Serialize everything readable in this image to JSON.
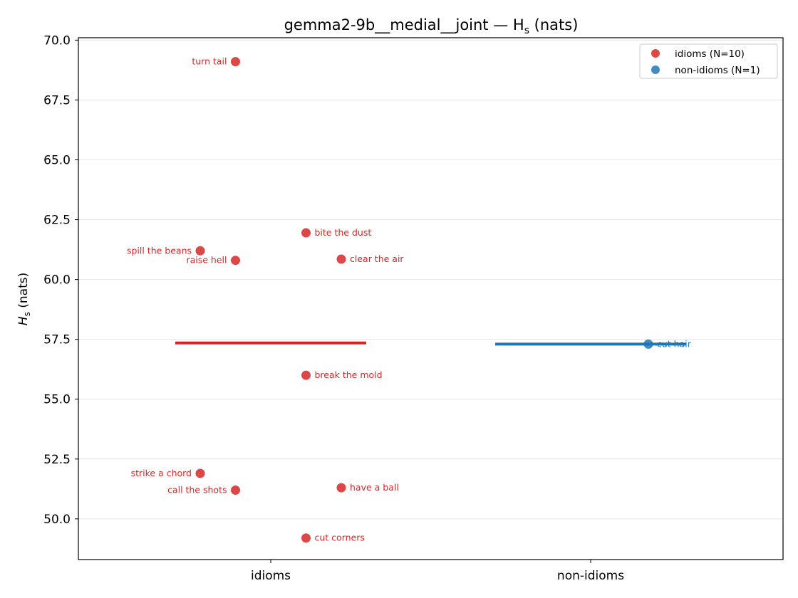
{
  "chart_data": {
    "type": "scatter",
    "title": "gemma2-9b__medial__joint — H",
    "title_sub": "s",
    "title_suffix": " (nats)",
    "ylabel_main": "H",
    "ylabel_sub": "s",
    "ylabel_suffix": " (nats)",
    "xlabel": "",
    "categories": [
      "idioms",
      "non-idioms"
    ],
    "ylim": [
      48.3,
      70.1
    ],
    "yticks": [
      50.0,
      52.5,
      55.0,
      57.5,
      60.0,
      62.5,
      65.0,
      67.5,
      70.0
    ],
    "ytick_labels": [
      "50.0",
      "52.5",
      "55.0",
      "57.5",
      "60.0",
      "62.5",
      "65.0",
      "67.5",
      "70.0"
    ],
    "grid": "horizontal",
    "legend_position": "top-right",
    "series": [
      {
        "name": "idioms (N=10)",
        "category": "idioms",
        "color": "#d62728",
        "mean": 57.35,
        "points": [
          {
            "label": "turn tail",
            "jitter": -0.11,
            "y": 69.1,
            "label_side": "left"
          },
          {
            "label": "bite the dust",
            "jitter": 0.11,
            "y": 61.95,
            "label_side": "right"
          },
          {
            "label": "spill the beans",
            "jitter": -0.22,
            "y": 61.2,
            "label_side": "left"
          },
          {
            "label": "clear the air",
            "jitter": 0.22,
            "y": 60.85,
            "label_side": "right"
          },
          {
            "label": "raise hell",
            "jitter": -0.11,
            "y": 60.8,
            "label_side": "left"
          },
          {
            "label": "break the mold",
            "jitter": 0.11,
            "y": 56.0,
            "label_side": "right"
          },
          {
            "label": "strike a chord",
            "jitter": -0.22,
            "y": 51.9,
            "label_side": "left"
          },
          {
            "label": "have a ball",
            "jitter": 0.22,
            "y": 51.3,
            "label_side": "right"
          },
          {
            "label": "call the shots",
            "jitter": -0.11,
            "y": 51.2,
            "label_side": "left"
          },
          {
            "label": "cut corners",
            "jitter": 0.11,
            "y": 49.2,
            "label_side": "right"
          }
        ]
      },
      {
        "name": "non-idioms (N=1)",
        "category": "non-idioms",
        "color": "#1f77b4",
        "mean": 57.3,
        "points": [
          {
            "label": "cut hair",
            "jitter": 0.18,
            "y": 57.3,
            "label_side": "right"
          }
        ]
      }
    ]
  }
}
